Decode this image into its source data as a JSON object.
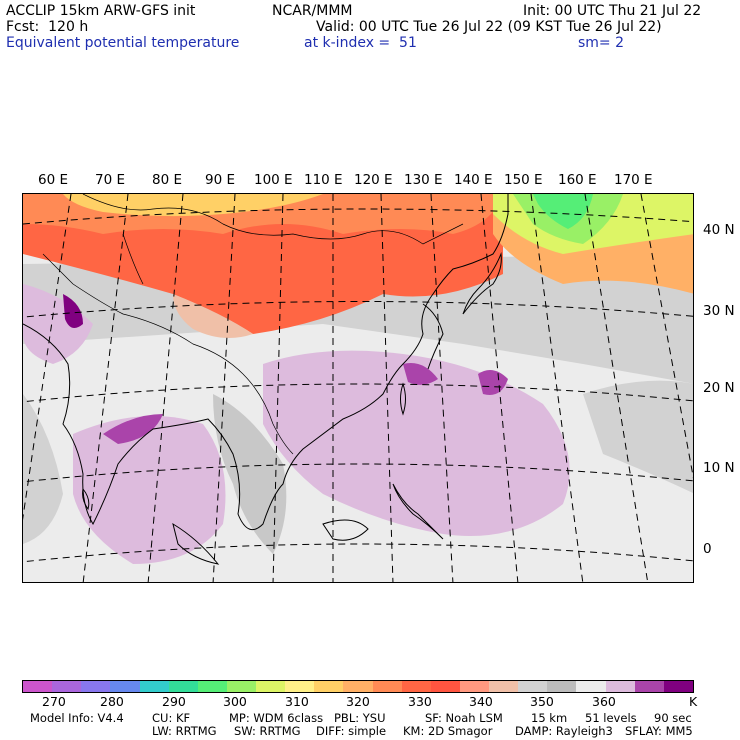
{
  "header": {
    "line1_left": "ACCLIP 15km ARW-GFS init",
    "line1_center": "NCAR/MMM",
    "line1_right": "Init: 00 UTC Thu 21 Jul 22",
    "line2_left": "Fcst:  120 h",
    "line2_right": "Valid: 00 UTC Tue 26 Jul 22 (09 KST Tue 26 Jul 22)",
    "line3_field": "Equivalent potential temperature",
    "line3_level": "at k-index =  51",
    "line3_smooth": "sm= 2"
  },
  "map": {
    "longitude_labels": [
      "60 E",
      "70 E",
      "80 E",
      "90 E",
      "100 E",
      "110 E",
      "120 E",
      "130 E",
      "140 E",
      "150 E",
      "160 E",
      "170 E"
    ],
    "latitude_labels": [
      "40 N",
      "30 N",
      "20 N",
      "10 N",
      "0"
    ]
  },
  "colorbar": {
    "colors": [
      "#cc55cc",
      "#aa66dd",
      "#8877ee",
      "#6688ee",
      "#33cccc",
      "#33dd99",
      "#55ee77",
      "#99f066",
      "#ddf566",
      "#fff088",
      "#ffd066",
      "#ffb066",
      "#ff8a55",
      "#ff6644",
      "#ff5540",
      "#ff9980",
      "#f0c0a8",
      "#d2d2d2",
      "#bcbcbc",
      "#ececec",
      "#ddbbdd",
      "#aa44aa",
      "#800080"
    ],
    "labels": [
      "270",
      "280",
      "290",
      "300",
      "310",
      "320",
      "330",
      "340",
      "350",
      "360",
      "K"
    ],
    "unit": "K"
  },
  "footer": {
    "row1": [
      "Model Info: V4.4",
      "CU: KF",
      "MP: WDM 6class",
      "PBL: YSU",
      "SF: Noah LSM",
      "15 km",
      "51 levels",
      "90 sec"
    ],
    "row2": [
      "LW: RRTMG",
      "SW: RRTMG",
      "DIFF: simple",
      "KM: 2D Smagor",
      "DAMP: Rayleigh3",
      "SFLAY: MM5"
    ]
  }
}
